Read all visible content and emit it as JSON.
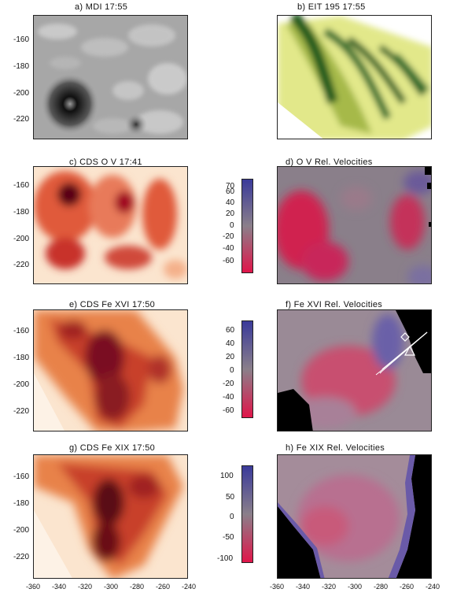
{
  "panels": {
    "a": {
      "title": "a)   MDI 17:55"
    },
    "b": {
      "title": "b)   EIT 195 17:55"
    },
    "c": {
      "title": "c)   CDS O V 17:41"
    },
    "d": {
      "title": "d)   O V Rel. Velocities"
    },
    "e": {
      "title": "e)   CDS Fe XVI 17:50"
    },
    "f": {
      "title": "f)   Fe XVI Rel. Velocities"
    },
    "g": {
      "title": "g)   CDS Fe XIX 17:50"
    },
    "h": {
      "title": "h)   Fe XIX Rel. Velocities"
    }
  },
  "y_ticks": [
    "-160",
    "-180",
    "-200",
    "-220"
  ],
  "x_ticks_left": [
    "-360",
    "-340",
    "-320",
    "-300",
    "-280",
    "-260",
    "-240"
  ],
  "x_ticks_right": [
    "-360",
    "-340",
    "-320",
    "-300",
    "-280",
    "-260",
    "-240"
  ],
  "colorbars": {
    "ov": [
      "70",
      "60",
      "40",
      "20",
      "0",
      "-20",
      "-40",
      "-60"
    ],
    "fexvi": [
      "60",
      "40",
      "20",
      "0",
      "-20",
      "-40",
      "-60"
    ],
    "fexix": [
      "100",
      "50",
      "0",
      "-50",
      "-100"
    ]
  },
  "colors": {
    "intensity_dark": "#5a0014",
    "intensity_mid": "#c8502a",
    "intensity_light": "#fbe5cf",
    "velocity_blue": "#3a3a9a",
    "velocity_red": "#e0164a",
    "velocity_gray": "#8a7f8a",
    "eit_dark": "#1f5a1f",
    "eit_light": "#e2e88a"
  }
}
